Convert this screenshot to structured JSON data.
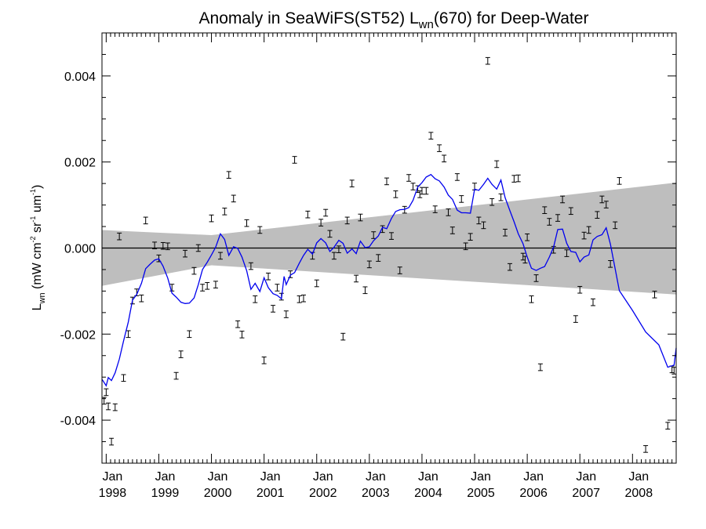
{
  "chart_data": {
    "type": "scatter",
    "title": {
      "prefix": "Anomaly in SeaWiFS(ST52) L",
      "subscript": "wn",
      "suffix": "(670) for Deep-Water"
    },
    "ylabel": {
      "prefix": "L",
      "subscript": "wn",
      "body": " (mW cm",
      "exp1": "-2",
      "mid1": " sr",
      "exp2": "-1",
      "mid2": " um",
      "exp3": "-1",
      "suffix": ")"
    },
    "xlabel": "",
    "x_units": "decimal year",
    "xlim": [
      1997.92,
      2008.83
    ],
    "ylim": [
      -0.005,
      0.005
    ],
    "x_ticks": [
      {
        "value": 1998,
        "label": "Jan",
        "year": "1998"
      },
      {
        "value": 1999,
        "label": "Jan",
        "year": "1999"
      },
      {
        "value": 2000,
        "label": "Jan",
        "year": "2000"
      },
      {
        "value": 2001,
        "label": "Jan",
        "year": "2001"
      },
      {
        "value": 2002,
        "label": "Jan",
        "year": "2002"
      },
      {
        "value": 2003,
        "label": "Jan",
        "year": "2003"
      },
      {
        "value": 2004,
        "label": "Jan",
        "year": "2004"
      },
      {
        "value": 2005,
        "label": "Jan",
        "year": "2005"
      },
      {
        "value": 2006,
        "label": "Jan",
        "year": "2006"
      },
      {
        "value": 2007,
        "label": "Jan",
        "year": "2007"
      },
      {
        "value": 2008,
        "label": "Jan",
        "year": "2008"
      }
    ],
    "y_ticks": [
      {
        "value": 0.004,
        "label": "0.004"
      },
      {
        "value": 0.002,
        "label": "0.002"
      },
      {
        "value": 0.0,
        "label": "0.000"
      },
      {
        "value": -0.002,
        "label": "-0.002"
      },
      {
        "value": -0.004,
        "label": "-0.004"
      }
    ],
    "zero_line": 0.0,
    "confidence_band": {
      "color": "#bebebe",
      "upper": [
        [
          1997.92,
          0.00042
        ],
        [
          2000.0,
          0.0003
        ],
        [
          2008.83,
          0.00152
        ]
      ],
      "lower": [
        [
          1997.92,
          -0.00088
        ],
        [
          2000.0,
          -0.0004
        ],
        [
          2008.83,
          -0.00108
        ]
      ]
    },
    "series": [
      {
        "type": "scatter_errorbar",
        "color": "#000000",
        "error": 6e-05,
        "points": [
          [
            1997.96,
            -0.00355
          ],
          [
            1998.0,
            -0.00335
          ],
          [
            1998.04,
            -0.00368
          ],
          [
            1998.1,
            -0.0045
          ],
          [
            1998.17,
            -0.0037
          ],
          [
            1998.25,
            0.00027
          ],
          [
            1998.33,
            -0.00302
          ],
          [
            1998.42,
            -0.002
          ],
          [
            1998.5,
            -0.00122
          ],
          [
            1998.58,
            -0.00103
          ],
          [
            1998.67,
            -0.00117
          ],
          [
            1998.75,
            0.00064
          ],
          [
            1998.92,
            6e-05
          ],
          [
            1999.0,
            -0.00024
          ],
          [
            1999.08,
            5e-05
          ],
          [
            1999.17,
            4e-05
          ],
          [
            1999.25,
            -0.00092
          ],
          [
            1999.33,
            -0.00297
          ],
          [
            1999.42,
            -0.00247
          ],
          [
            1999.5,
            -0.00013
          ],
          [
            1999.58,
            -0.002
          ],
          [
            1999.67,
            -0.00053
          ],
          [
            1999.75,
            0.0
          ],
          [
            1999.83,
            -0.00092
          ],
          [
            1999.92,
            -0.00088
          ],
          [
            2000.0,
            0.00069
          ],
          [
            2000.08,
            -0.00085
          ],
          [
            2000.17,
            -0.00018
          ],
          [
            2000.25,
            0.00085
          ],
          [
            2000.33,
            0.0017
          ],
          [
            2000.42,
            0.00115
          ],
          [
            2000.5,
            -0.00177
          ],
          [
            2000.58,
            -0.00201
          ],
          [
            2000.67,
            0.00058
          ],
          [
            2000.75,
            -0.00042
          ],
          [
            2000.83,
            -0.00119
          ],
          [
            2000.92,
            0.00042
          ],
          [
            2001.0,
            -0.00261
          ],
          [
            2001.08,
            -0.00066
          ],
          [
            2001.17,
            -0.00141
          ],
          [
            2001.25,
            -0.00092
          ],
          [
            2001.33,
            -0.00113
          ],
          [
            2001.42,
            -0.00154
          ],
          [
            2001.5,
            -0.00061
          ],
          [
            2001.58,
            0.00205
          ],
          [
            2001.67,
            -0.00119
          ],
          [
            2001.75,
            -0.00117
          ],
          [
            2001.83,
            0.00078
          ],
          [
            2001.92,
            -0.00018
          ],
          [
            2002.0,
            -0.00082
          ],
          [
            2002.08,
            0.00059
          ],
          [
            2002.17,
            0.00082
          ],
          [
            2002.25,
            0.00033
          ],
          [
            2002.33,
            -0.00018
          ],
          [
            2002.42,
            -3e-05
          ],
          [
            2002.5,
            -0.00206
          ],
          [
            2002.58,
            0.00064
          ],
          [
            2002.67,
            0.0015
          ],
          [
            2002.75,
            -0.00071
          ],
          [
            2002.83,
            0.00071
          ],
          [
            2002.92,
            -0.00098
          ],
          [
            2003.0,
            -0.00038
          ],
          [
            2003.08,
            0.0003
          ],
          [
            2003.17,
            -0.00023
          ],
          [
            2003.25,
            0.00044
          ],
          [
            2003.33,
            0.00155
          ],
          [
            2003.42,
            0.00028
          ],
          [
            2003.5,
            0.00125
          ],
          [
            2003.58,
            -0.00052
          ],
          [
            2003.67,
            0.00089
          ],
          [
            2003.75,
            0.00163
          ],
          [
            2003.83,
            0.00143
          ],
          [
            2003.92,
            0.00137
          ],
          [
            2003.96,
            0.00125
          ],
          [
            2004.0,
            0.00133
          ],
          [
            2004.08,
            0.00133
          ],
          [
            2004.17,
            0.00261
          ],
          [
            2004.25,
            0.0009
          ],
          [
            2004.33,
            0.00232
          ],
          [
            2004.42,
            0.00208
          ],
          [
            2004.5,
            0.00083
          ],
          [
            2004.58,
            0.00041
          ],
          [
            2004.67,
            0.00165
          ],
          [
            2004.75,
            0.00114
          ],
          [
            2004.83,
            4e-05
          ],
          [
            2004.92,
            0.00026
          ],
          [
            2005.0,
            0.00143
          ],
          [
            2005.08,
            0.00064
          ],
          [
            2005.17,
            0.00053
          ],
          [
            2005.25,
            0.00435
          ],
          [
            2005.33,
            0.00107
          ],
          [
            2005.42,
            0.00195
          ],
          [
            2005.5,
            0.00118
          ],
          [
            2005.58,
            0.00036
          ],
          [
            2005.67,
            -0.00044
          ],
          [
            2005.75,
            0.00161
          ],
          [
            2005.83,
            0.00162
          ],
          [
            2005.92,
            -0.0002
          ],
          [
            2005.96,
            -0.00027
          ],
          [
            2006.0,
            0.00025
          ],
          [
            2006.08,
            -0.00119
          ],
          [
            2006.17,
            -0.0007
          ],
          [
            2006.25,
            -0.00277
          ],
          [
            2006.33,
            0.00088
          ],
          [
            2006.42,
            0.00061
          ],
          [
            2006.5,
            -4e-05
          ],
          [
            2006.58,
            0.0007
          ],
          [
            2006.67,
            0.00113
          ],
          [
            2006.75,
            -0.00012
          ],
          [
            2006.83,
            0.00086
          ],
          [
            2006.92,
            -0.00165
          ],
          [
            2007.0,
            -0.00097
          ],
          [
            2007.08,
            0.00029
          ],
          [
            2007.17,
            0.00042
          ],
          [
            2007.25,
            -0.00126
          ],
          [
            2007.33,
            0.00077
          ],
          [
            2007.42,
            0.00113
          ],
          [
            2007.5,
            0.00101
          ],
          [
            2007.58,
            -0.00037
          ],
          [
            2007.67,
            0.00053
          ],
          [
            2007.75,
            0.00156
          ],
          [
            2008.25,
            -0.00467
          ],
          [
            2008.42,
            -0.00108
          ],
          [
            2008.67,
            -0.00413
          ],
          [
            2008.75,
            -0.00282
          ],
          [
            2008.79,
            -0.00285
          ]
        ]
      },
      {
        "type": "line",
        "color": "#0000ee",
        "points": [
          [
            1997.92,
            -0.00305
          ],
          [
            1998.0,
            -0.0032
          ],
          [
            1998.04,
            -0.00301
          ],
          [
            1998.1,
            -0.00308
          ],
          [
            1998.17,
            -0.0029
          ],
          [
            1998.25,
            -0.00258
          ],
          [
            1998.33,
            -0.00216
          ],
          [
            1998.42,
            -0.00172
          ],
          [
            1998.5,
            -0.00121
          ],
          [
            1998.58,
            -0.00108
          ],
          [
            1998.67,
            -0.00082
          ],
          [
            1998.75,
            -0.00048
          ],
          [
            1998.83,
            -0.00038
          ],
          [
            1998.92,
            -0.00028
          ],
          [
            1999.0,
            -0.00025
          ],
          [
            1999.08,
            -0.00042
          ],
          [
            1999.17,
            -0.0007
          ],
          [
            1999.25,
            -0.00105
          ],
          [
            1999.33,
            -0.00114
          ],
          [
            1999.42,
            -0.00126
          ],
          [
            1999.5,
            -0.00129
          ],
          [
            1999.58,
            -0.00128
          ],
          [
            1999.67,
            -0.00116
          ],
          [
            1999.75,
            -0.00085
          ],
          [
            1999.83,
            -0.0005
          ],
          [
            1999.92,
            -0.00033
          ],
          [
            2000.0,
            -0.00016
          ],
          [
            2000.08,
            2e-05
          ],
          [
            2000.17,
            0.00033
          ],
          [
            2000.25,
            0.0002
          ],
          [
            2000.33,
            -0.00017
          ],
          [
            2000.42,
            3e-05
          ],
          [
            2000.5,
            -1e-05
          ],
          [
            2000.58,
            -0.00021
          ],
          [
            2000.67,
            -0.00053
          ],
          [
            2000.75,
            -0.00096
          ],
          [
            2000.83,
            -0.00082
          ],
          [
            2000.92,
            -0.00101
          ],
          [
            2001.0,
            -0.00069
          ],
          [
            2001.08,
            -0.00092
          ],
          [
            2001.17,
            -0.00106
          ],
          [
            2001.25,
            -0.0011
          ],
          [
            2001.33,
            -0.00118
          ],
          [
            2001.38,
            -0.00066
          ],
          [
            2001.42,
            -0.00085
          ],
          [
            2001.5,
            -0.00063
          ],
          [
            2001.58,
            -0.00057
          ],
          [
            2001.67,
            -0.00035
          ],
          [
            2001.75,
            -0.00017
          ],
          [
            2001.83,
            -3e-05
          ],
          [
            2001.92,
            -0.00014
          ],
          [
            2002.0,
            0.00012
          ],
          [
            2002.08,
            0.00022
          ],
          [
            2002.17,
            0.00012
          ],
          [
            2002.25,
            -8e-05
          ],
          [
            2002.33,
            2e-05
          ],
          [
            2002.42,
            0.00018
          ],
          [
            2002.5,
            0.00011
          ],
          [
            2002.58,
            -0.00012
          ],
          [
            2002.67,
            -2e-05
          ],
          [
            2002.75,
            -0.00013
          ],
          [
            2002.83,
            0.00016
          ],
          [
            2002.92,
            1e-05
          ],
          [
            2003.0,
            3e-05
          ],
          [
            2003.08,
            0.00017
          ],
          [
            2003.17,
            0.00028
          ],
          [
            2003.25,
            0.00048
          ],
          [
            2003.33,
            0.00045
          ],
          [
            2003.42,
            0.00069
          ],
          [
            2003.5,
            0.00085
          ],
          [
            2003.58,
            0.00089
          ],
          [
            2003.67,
            0.0009
          ],
          [
            2003.75,
            0.00094
          ],
          [
            2003.83,
            0.00111
          ],
          [
            2003.92,
            0.00142
          ],
          [
            2004.0,
            0.00152
          ],
          [
            2004.08,
            0.00165
          ],
          [
            2004.17,
            0.00171
          ],
          [
            2004.25,
            0.00161
          ],
          [
            2004.33,
            0.00156
          ],
          [
            2004.42,
            0.00142
          ],
          [
            2004.5,
            0.00123
          ],
          [
            2004.58,
            0.00113
          ],
          [
            2004.67,
            0.00088
          ],
          [
            2004.75,
            0.00082
          ],
          [
            2004.83,
            0.00082
          ],
          [
            2004.92,
            0.00081
          ],
          [
            2005.0,
            0.00137
          ],
          [
            2005.08,
            0.00134
          ],
          [
            2005.17,
            0.00148
          ],
          [
            2005.25,
            0.00162
          ],
          [
            2005.33,
            0.00148
          ],
          [
            2005.42,
            0.00137
          ],
          [
            2005.5,
            0.00158
          ],
          [
            2005.58,
            0.00117
          ],
          [
            2005.67,
            0.00087
          ],
          [
            2005.75,
            0.00061
          ],
          [
            2005.83,
            0.00033
          ],
          [
            2005.92,
            0.0001
          ],
          [
            2006.0,
            -0.00021
          ],
          [
            2006.08,
            -0.00047
          ],
          [
            2006.17,
            -0.00052
          ],
          [
            2006.25,
            -0.00047
          ],
          [
            2006.33,
            -0.00043
          ],
          [
            2006.42,
            -0.00021
          ],
          [
            2006.5,
            2e-05
          ],
          [
            2006.58,
            0.00043
          ],
          [
            2006.67,
            0.00044
          ],
          [
            2006.75,
            0.00011
          ],
          [
            2006.83,
            -8e-05
          ],
          [
            2006.92,
            -0.0001
          ],
          [
            2007.0,
            -0.00032
          ],
          [
            2007.08,
            -0.00021
          ],
          [
            2007.17,
            -0.00016
          ],
          [
            2007.25,
            0.00019
          ],
          [
            2007.33,
            0.00027
          ],
          [
            2007.42,
            0.00031
          ],
          [
            2007.5,
            0.00047
          ],
          [
            2007.58,
            9e-05
          ],
          [
            2007.67,
            -0.00048
          ],
          [
            2007.75,
            -0.00099
          ],
          [
            2008.0,
            -0.00145
          ],
          [
            2008.25,
            -0.00195
          ],
          [
            2008.5,
            -0.00225
          ],
          [
            2008.67,
            -0.00277
          ],
          [
            2008.79,
            -0.00272
          ],
          [
            2008.83,
            -0.00232
          ]
        ]
      }
    ],
    "grid": false,
    "legend": "none"
  }
}
